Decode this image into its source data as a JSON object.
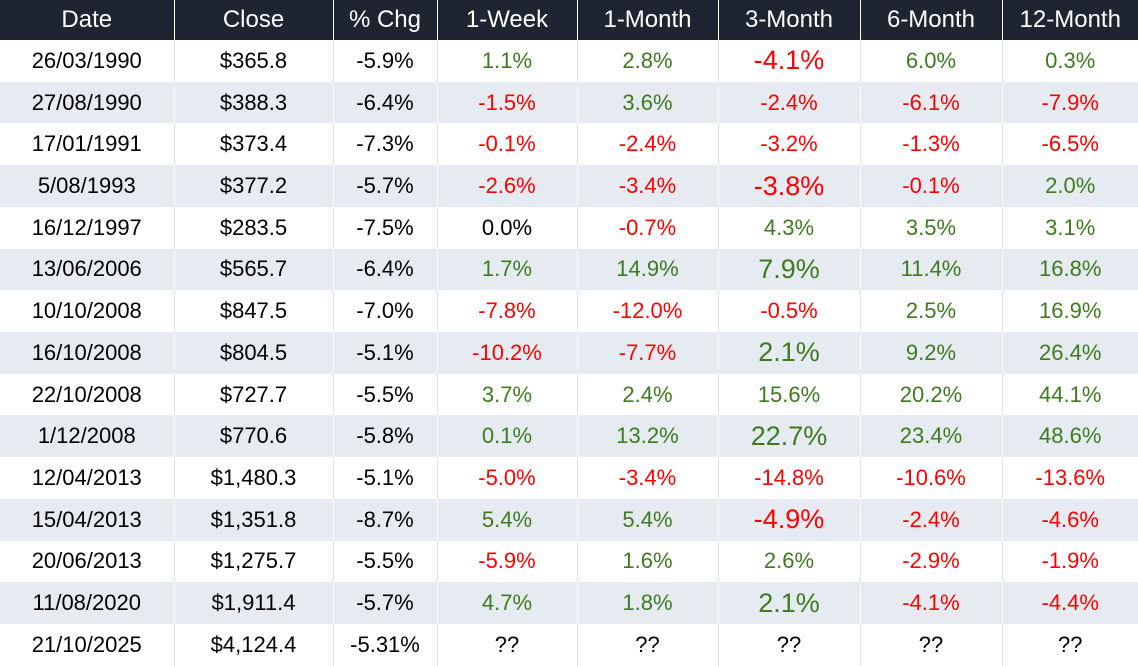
{
  "colors": {
    "positive_green": "#3e7a1e",
    "negative_red": "#ff0000",
    "neutral_black": "#000000",
    "header_bg": "#1e2430",
    "header_text": "#ffffff",
    "stripe_bg": "#e5ebf1"
  },
  "table": {
    "columns": [
      {
        "key": "date",
        "label": "Date"
      },
      {
        "key": "close",
        "label": "Close"
      },
      {
        "key": "chg",
        "label": "% Chg"
      },
      {
        "key": "w1",
        "label": "1-Week"
      },
      {
        "key": "m1",
        "label": "1-Month"
      },
      {
        "key": "m3",
        "label": "3-Month"
      },
      {
        "key": "m6",
        "label": "6-Month"
      },
      {
        "key": "m12",
        "label": "12-Month"
      }
    ],
    "rows": [
      {
        "date": "26/03/1990",
        "close": "$365.8",
        "chg": "-5.9%",
        "returns": [
          {
            "v": "1.1%",
            "color": "green"
          },
          {
            "v": "2.8%",
            "color": "green"
          },
          {
            "v": "-4.1%",
            "color": "red",
            "large": true
          },
          {
            "v": "6.0%",
            "color": "green"
          },
          {
            "v": "0.3%",
            "color": "green"
          }
        ]
      },
      {
        "date": "27/08/1990",
        "close": "$388.3",
        "chg": "-6.4%",
        "returns": [
          {
            "v": "-1.5%",
            "color": "red"
          },
          {
            "v": "3.6%",
            "color": "green"
          },
          {
            "v": "-2.4%",
            "color": "red"
          },
          {
            "v": "-6.1%",
            "color": "red"
          },
          {
            "v": "-7.9%",
            "color": "red"
          }
        ]
      },
      {
        "date": "17/01/1991",
        "close": "$373.4",
        "chg": "-7.3%",
        "returns": [
          {
            "v": "-0.1%",
            "color": "red"
          },
          {
            "v": "-2.4%",
            "color": "red"
          },
          {
            "v": "-3.2%",
            "color": "red"
          },
          {
            "v": "-1.3%",
            "color": "red"
          },
          {
            "v": "-6.5%",
            "color": "red"
          }
        ]
      },
      {
        "date": "5/08/1993",
        "close": "$377.2",
        "chg": "-5.7%",
        "returns": [
          {
            "v": "-2.6%",
            "color": "red"
          },
          {
            "v": "-3.4%",
            "color": "red"
          },
          {
            "v": "-3.8%",
            "color": "red",
            "large": true
          },
          {
            "v": "-0.1%",
            "color": "red"
          },
          {
            "v": "2.0%",
            "color": "green"
          }
        ]
      },
      {
        "date": "16/12/1997",
        "close": "$283.5",
        "chg": "-7.5%",
        "returns": [
          {
            "v": "0.0%",
            "color": "black"
          },
          {
            "v": "-0.7%",
            "color": "red"
          },
          {
            "v": "4.3%",
            "color": "green"
          },
          {
            "v": "3.5%",
            "color": "green"
          },
          {
            "v": "3.1%",
            "color": "green"
          }
        ]
      },
      {
        "date": "13/06/2006",
        "close": "$565.7",
        "chg": "-6.4%",
        "returns": [
          {
            "v": "1.7%",
            "color": "green"
          },
          {
            "v": "14.9%",
            "color": "green"
          },
          {
            "v": "7.9%",
            "color": "green",
            "large": true
          },
          {
            "v": "11.4%",
            "color": "green"
          },
          {
            "v": "16.8%",
            "color": "green"
          }
        ]
      },
      {
        "date": "10/10/2008",
        "close": "$847.5",
        "chg": "-7.0%",
        "returns": [
          {
            "v": "-7.8%",
            "color": "red"
          },
          {
            "v": "-12.0%",
            "color": "red"
          },
          {
            "v": "-0.5%",
            "color": "red"
          },
          {
            "v": "2.5%",
            "color": "green"
          },
          {
            "v": "16.9%",
            "color": "green"
          }
        ]
      },
      {
        "date": "16/10/2008",
        "close": "$804.5",
        "chg": "-5.1%",
        "returns": [
          {
            "v": "-10.2%",
            "color": "red"
          },
          {
            "v": "-7.7%",
            "color": "red"
          },
          {
            "v": "2.1%",
            "color": "green",
            "large": true
          },
          {
            "v": "9.2%",
            "color": "green"
          },
          {
            "v": "26.4%",
            "color": "green"
          }
        ]
      },
      {
        "date": "22/10/2008",
        "close": "$727.7",
        "chg": "-5.5%",
        "returns": [
          {
            "v": "3.7%",
            "color": "green"
          },
          {
            "v": "2.4%",
            "color": "green"
          },
          {
            "v": "15.6%",
            "color": "green"
          },
          {
            "v": "20.2%",
            "color": "green"
          },
          {
            "v": "44.1%",
            "color": "green"
          }
        ]
      },
      {
        "date": "1/12/2008",
        "close": "$770.6",
        "chg": "-5.8%",
        "returns": [
          {
            "v": "0.1%",
            "color": "green"
          },
          {
            "v": "13.2%",
            "color": "green"
          },
          {
            "v": "22.7%",
            "color": "green",
            "large": true
          },
          {
            "v": "23.4%",
            "color": "green"
          },
          {
            "v": "48.6%",
            "color": "green"
          }
        ]
      },
      {
        "date": "12/04/2013",
        "close": "$1,480.3",
        "chg": "-5.1%",
        "returns": [
          {
            "v": "-5.0%",
            "color": "red"
          },
          {
            "v": "-3.4%",
            "color": "red"
          },
          {
            "v": "-14.8%",
            "color": "red"
          },
          {
            "v": "-10.6%",
            "color": "red"
          },
          {
            "v": "-13.6%",
            "color": "red"
          }
        ]
      },
      {
        "date": "15/04/2013",
        "close": "$1,351.8",
        "chg": "-8.7%",
        "returns": [
          {
            "v": "5.4%",
            "color": "green"
          },
          {
            "v": "5.4%",
            "color": "green"
          },
          {
            "v": "-4.9%",
            "color": "red",
            "large": true
          },
          {
            "v": "-2.4%",
            "color": "red"
          },
          {
            "v": "-4.6%",
            "color": "red"
          }
        ]
      },
      {
        "date": "20/06/2013",
        "close": "$1,275.7",
        "chg": "-5.5%",
        "returns": [
          {
            "v": "-5.9%",
            "color": "red"
          },
          {
            "v": "1.6%",
            "color": "green"
          },
          {
            "v": "2.6%",
            "color": "green"
          },
          {
            "v": "-2.9%",
            "color": "red"
          },
          {
            "v": "-1.9%",
            "color": "red"
          }
        ]
      },
      {
        "date": "11/08/2020",
        "close": "$1,911.4",
        "chg": "-5.7%",
        "returns": [
          {
            "v": "4.7%",
            "color": "green"
          },
          {
            "v": "1.8%",
            "color": "green"
          },
          {
            "v": "2.1%",
            "color": "green",
            "large": true
          },
          {
            "v": "-4.1%",
            "color": "red"
          },
          {
            "v": "-4.4%",
            "color": "red"
          }
        ]
      },
      {
        "date": "21/10/2025",
        "close": "$4,124.4",
        "chg": "-5.31%",
        "returns": [
          {
            "v": "??",
            "color": "black"
          },
          {
            "v": "??",
            "color": "black"
          },
          {
            "v": "??",
            "color": "black"
          },
          {
            "v": "??",
            "color": "black"
          },
          {
            "v": "??",
            "color": "black"
          }
        ]
      }
    ]
  }
}
